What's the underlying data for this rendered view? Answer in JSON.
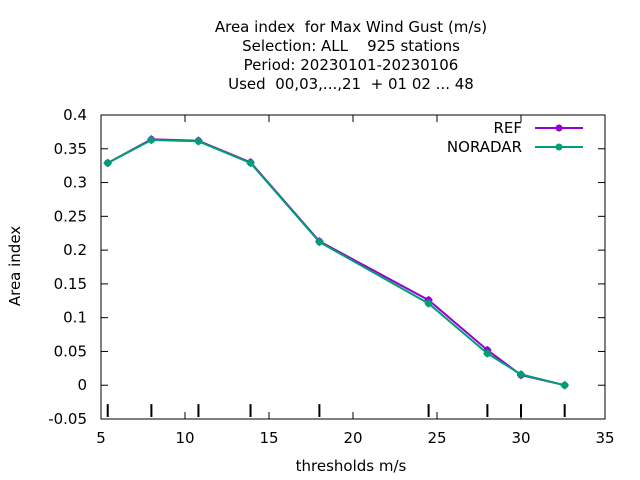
{
  "chart_data": {
    "type": "line",
    "title_lines": [
      "Area index  for Max Wind Gust (m/s)",
      "Selection: ALL    925 stations",
      "Period: 20230101-20230106",
      "Used  00,03,...,21  + 01 02 ... 48"
    ],
    "xlabel": "thresholds m/s",
    "ylabel": "Area index",
    "xlim": [
      5,
      35
    ],
    "ylim": [
      -0.05,
      0.4
    ],
    "xticks": [
      "5",
      "10",
      "15",
      "20",
      "25",
      "30",
      "35"
    ],
    "yticks": [
      "-0.05",
      "0",
      "0.05",
      "0.1",
      "0.15",
      "0.2",
      "0.25",
      "0.3",
      "0.35",
      "0.4"
    ],
    "threshold_marks": [
      5.4,
      8.0,
      10.8,
      13.9,
      18.0,
      24.5,
      28.0,
      30.0,
      32.6
    ],
    "legend_position": "top-right",
    "grid": false,
    "series": [
      {
        "name": "REF",
        "color": "#9400d3",
        "x": [
          5.4,
          8.0,
          10.8,
          13.9,
          18.0,
          24.5,
          28.0,
          30.0,
          32.6
        ],
        "values": [
          0.329,
          0.364,
          0.362,
          0.33,
          0.213,
          0.126,
          0.052,
          0.015,
          0.0
        ]
      },
      {
        "name": "NORADAR",
        "color": "#009e73",
        "x": [
          5.4,
          8.0,
          10.8,
          13.9,
          18.0,
          24.5,
          28.0,
          30.0,
          32.6
        ],
        "values": [
          0.329,
          0.363,
          0.361,
          0.329,
          0.212,
          0.121,
          0.047,
          0.016,
          0.0
        ]
      }
    ]
  }
}
